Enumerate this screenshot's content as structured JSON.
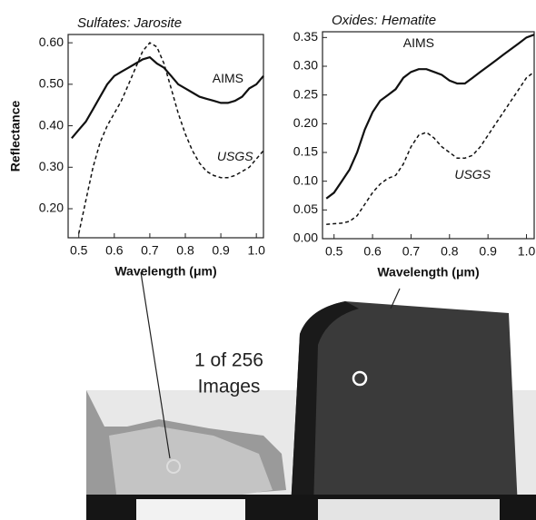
{
  "chart_data": [
    {
      "type": "line",
      "title": "Sulfates: Jarosite",
      "xlabel": "Wavelength (μm)",
      "ylabel": "Reflectance",
      "x": [
        0.48,
        0.5,
        0.52,
        0.54,
        0.56,
        0.58,
        0.6,
        0.62,
        0.64,
        0.66,
        0.68,
        0.7,
        0.72,
        0.74,
        0.76,
        0.78,
        0.8,
        0.82,
        0.84,
        0.86,
        0.88,
        0.9,
        0.92,
        0.94,
        0.96,
        0.98,
        1.0,
        1.02
      ],
      "series": [
        {
          "name": "AIMS",
          "color": "#111111",
          "linestyle": "solid",
          "values": [
            0.37,
            0.39,
            0.41,
            0.44,
            0.47,
            0.5,
            0.52,
            0.53,
            0.54,
            0.55,
            0.56,
            0.565,
            0.55,
            0.54,
            0.52,
            0.5,
            0.49,
            0.48,
            0.47,
            0.465,
            0.46,
            0.455,
            0.455,
            0.46,
            0.47,
            0.49,
            0.5,
            0.52
          ]
        },
        {
          "name": "USGS",
          "color": "#111111",
          "linestyle": "dashed",
          "values": [
            null,
            0.14,
            0.22,
            0.3,
            0.36,
            0.4,
            0.43,
            0.46,
            0.5,
            0.54,
            0.58,
            0.6,
            0.59,
            0.55,
            0.49,
            0.43,
            0.38,
            0.34,
            0.31,
            0.29,
            0.28,
            0.275,
            0.275,
            0.28,
            0.29,
            0.3,
            0.32,
            0.34
          ]
        }
      ],
      "xlim": [
        0.47,
        1.02
      ],
      "xticks": [
        0.5,
        0.6,
        0.7,
        0.8,
        0.9,
        {
          "value": 1.0,
          "label": "1.0"
        }
      ],
      "ylim": [
        0.13,
        0.62
      ],
      "yticks": [
        {
          "value": 0.2,
          "label": "0.20"
        },
        {
          "value": 0.3,
          "label": "0.30"
        },
        {
          "value": 0.4,
          "label": "0.40"
        },
        {
          "value": 0.5,
          "label": "0.50"
        },
        {
          "value": 0.6,
          "label": "0.60"
        }
      ]
    },
    {
      "type": "line",
      "title": "Oxides: Hematite",
      "xlabel": "Wavelength (μm)",
      "x": [
        0.48,
        0.5,
        0.52,
        0.54,
        0.56,
        0.58,
        0.6,
        0.62,
        0.64,
        0.66,
        0.68,
        0.7,
        0.72,
        0.74,
        0.76,
        0.78,
        0.8,
        0.82,
        0.84,
        0.86,
        0.88,
        0.9,
        0.92,
        0.94,
        0.96,
        0.98,
        1.0,
        1.02
      ],
      "series": [
        {
          "name": "AIMS",
          "color": "#111111",
          "linestyle": "solid",
          "values": [
            0.07,
            0.08,
            0.1,
            0.12,
            0.15,
            0.19,
            0.22,
            0.24,
            0.25,
            0.26,
            0.28,
            0.29,
            0.295,
            0.295,
            0.29,
            0.285,
            0.275,
            0.27,
            0.27,
            0.28,
            0.29,
            0.3,
            0.31,
            0.32,
            0.33,
            0.34,
            0.35,
            0.355
          ]
        },
        {
          "name": "USGS",
          "color": "#111111",
          "linestyle": "dashed",
          "values": [
            0.025,
            0.026,
            0.027,
            0.03,
            0.04,
            0.06,
            0.08,
            0.095,
            0.105,
            0.11,
            0.13,
            0.16,
            0.18,
            0.185,
            0.175,
            0.16,
            0.15,
            0.14,
            0.14,
            0.145,
            0.16,
            0.18,
            0.2,
            0.22,
            0.24,
            0.26,
            0.28,
            0.29
          ]
        }
      ],
      "xlim": [
        0.47,
        1.02
      ],
      "xticks": [
        0.5,
        0.6,
        0.7,
        0.8,
        0.9,
        {
          "value": 1.0,
          "label": "1.0"
        }
      ],
      "ylim": [
        0,
        0.36
      ],
      "yticks": [
        {
          "value": 0,
          "label": "0.00"
        },
        0.05,
        {
          "value": 0.1,
          "label": "0.10"
        },
        0.15,
        {
          "value": 0.2,
          "label": "0.20"
        },
        0.25,
        {
          "value": 0.3,
          "label": "0.30"
        },
        0.35
      ]
    }
  ],
  "image_caption": [
    "1 of 256",
    "Images"
  ]
}
